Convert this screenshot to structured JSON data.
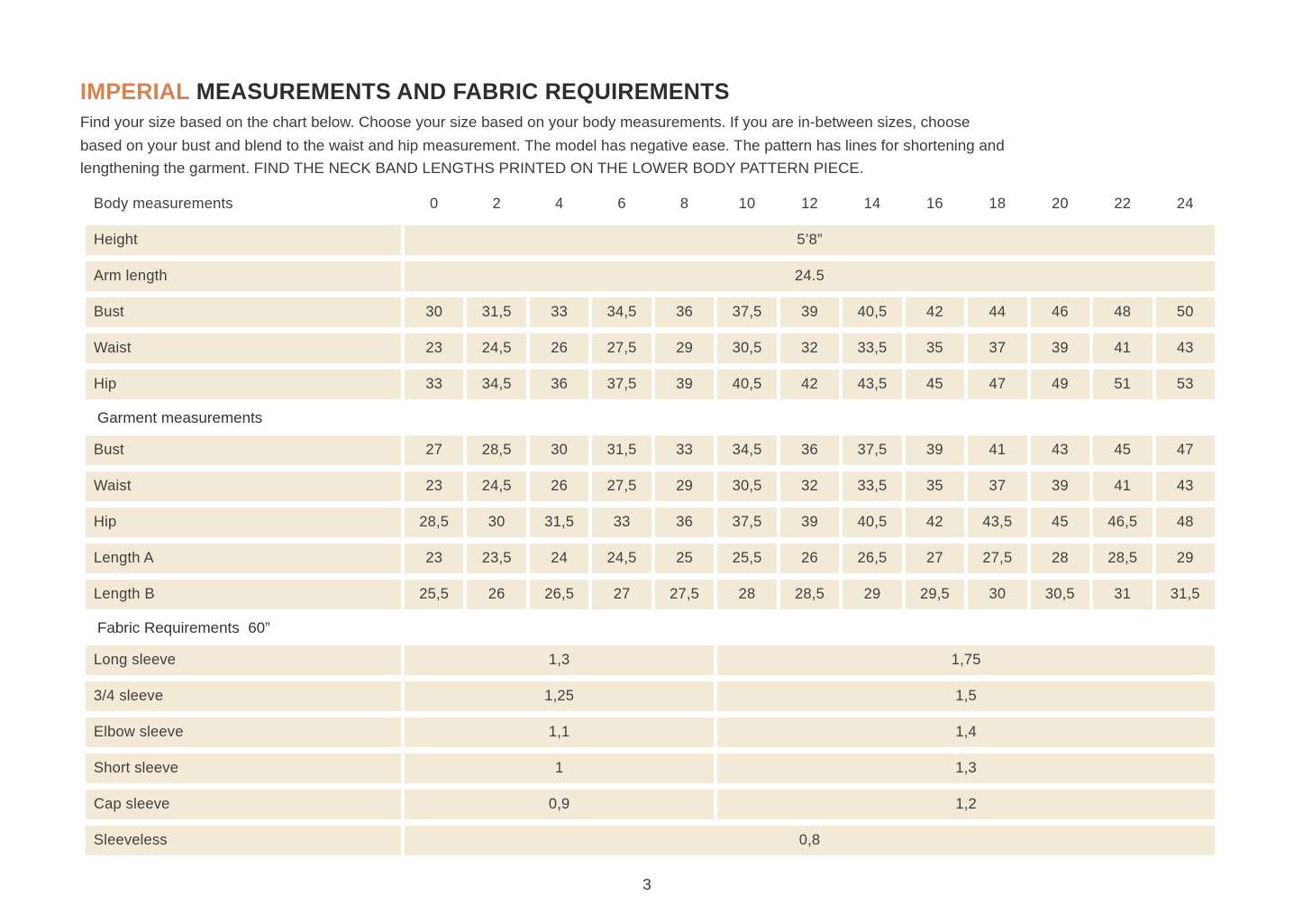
{
  "page": {
    "title_highlight": "IMPERIAL",
    "title_rest": "MEASUREMENTS AND FABRIC REQUIREMENTS",
    "intro_lines": [
      "Find your size based on the chart below. Choose your size based on your body measurements. If you are in-between sizes, choose",
      "based on your bust and blend to the waist and hip measurement. The model has negative ease. The pattern has lines for shortening and",
      "lengthening the garment. FIND THE NECK BAND LENGTHS PRINTED ON THE LOWER BODY PATTERN PIECE."
    ],
    "page_number": "3"
  },
  "colors": {
    "accent_orange": "#d9804d",
    "cell_beige": "#f2e9d7",
    "text_dark": "#2d2d2d"
  },
  "size_chart": {
    "header_label": "Body measurements",
    "sizes": [
      "0",
      "2",
      "4",
      "6",
      "8",
      "10",
      "12",
      "14",
      "16",
      "18",
      "20",
      "22",
      "24"
    ],
    "body_rows": [
      {
        "label": "Height",
        "values": [
          "5’8”"
        ],
        "spans": [
          13
        ]
      },
      {
        "label": "Arm length",
        "values": [
          "24.5"
        ],
        "spans": [
          13
        ]
      },
      {
        "label": "Bust",
        "values": [
          "30",
          "31,5",
          "33",
          "34,5",
          "36",
          "37,5",
          "39",
          "40,5",
          "42",
          "44",
          "46",
          "48",
          "50"
        ]
      },
      {
        "label": "Waist",
        "values": [
          "23",
          "24,5",
          "26",
          "27,5",
          "29",
          "30,5",
          "32",
          "33,5",
          "35",
          "37",
          "39",
          "41",
          "43"
        ]
      },
      {
        "label": "Hip",
        "values": [
          "33",
          "34,5",
          "36",
          "37,5",
          "39",
          "40,5",
          "42",
          "43,5",
          "45",
          "47",
          "49",
          "51",
          "53"
        ]
      }
    ],
    "garment_header": "Garment measurements",
    "garment_rows": [
      {
        "label": "Bust",
        "values": [
          "27",
          "28,5",
          "30",
          "31,5",
          "33",
          "34,5",
          "36",
          "37,5",
          "39",
          "41",
          "43",
          "45",
          "47"
        ]
      },
      {
        "label": "Waist",
        "values": [
          "23",
          "24,5",
          "26",
          "27,5",
          "29",
          "30,5",
          "32",
          "33,5",
          "35",
          "37",
          "39",
          "41",
          "43"
        ]
      },
      {
        "label": "Hip",
        "values": [
          "28,5",
          "30",
          "31,5",
          "33",
          "36",
          "37,5",
          "39",
          "40,5",
          "42",
          "43,5",
          "45",
          "46,5",
          "48"
        ]
      },
      {
        "label": "Length A",
        "values": [
          "23",
          "23,5",
          "24",
          "24,5",
          "25",
          "25,5",
          "26",
          "26,5",
          "27",
          "27,5",
          "28",
          "28,5",
          "29"
        ]
      },
      {
        "label": "Length B",
        "values": [
          "25,5",
          "26",
          "26,5",
          "27",
          "27,5",
          "28",
          "28,5",
          "29",
          "29,5",
          "30",
          "30,5",
          "31",
          "31,5"
        ]
      }
    ],
    "fabric_header": "Fabric Requirements  60”",
    "fabric_rows": [
      {
        "label": "Long sleeve",
        "values": [
          "1,3",
          "1,75"
        ],
        "spans": [
          5,
          8
        ]
      },
      {
        "label": "3/4 sleeve",
        "values": [
          "1,25",
          "1,5"
        ],
        "spans": [
          5,
          8
        ]
      },
      {
        "label": "Elbow sleeve",
        "values": [
          "1,1",
          "1,4"
        ],
        "spans": [
          5,
          8
        ]
      },
      {
        "label": "Short sleeve",
        "values": [
          "1",
          "1,3"
        ],
        "spans": [
          5,
          8
        ]
      },
      {
        "label": "Cap sleeve",
        "values": [
          "0,9",
          "1,2"
        ],
        "spans": [
          5,
          8
        ]
      },
      {
        "label": "Sleeveless",
        "values": [
          "0,8"
        ],
        "spans": [
          13
        ]
      }
    ]
  }
}
